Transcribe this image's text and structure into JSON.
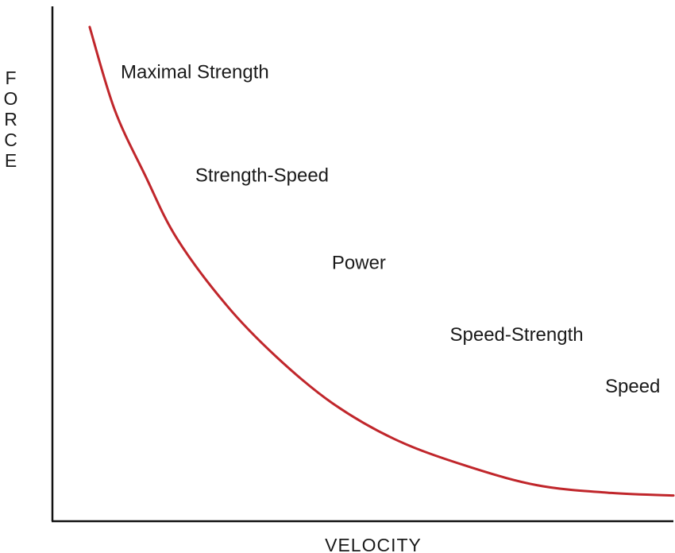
{
  "chart_data": {
    "type": "line",
    "title": "",
    "xlabel": "VELOCITY",
    "ylabel": "FORCE",
    "ticks": "none",
    "curve_color": "#c0262b",
    "series": [
      {
        "x": [
          0.06,
          0.1,
          0.15,
          0.2,
          0.28,
          0.36,
          0.45,
          0.55,
          0.66,
          0.78,
          0.9,
          1.0
        ],
        "y": [
          0.96,
          0.8,
          0.67,
          0.55,
          0.42,
          0.32,
          0.23,
          0.16,
          0.11,
          0.07,
          0.055,
          0.05
        ]
      }
    ],
    "annotations": [
      {
        "text": "Maximal Strength",
        "x": 0.11,
        "y": 0.86
      },
      {
        "text": "Strength-Speed",
        "x": 0.23,
        "y": 0.66
      },
      {
        "text": "Power",
        "x": 0.45,
        "y": 0.49
      },
      {
        "text": "Speed-Strength",
        "x": 0.64,
        "y": 0.35
      },
      {
        "text": "Speed",
        "x": 0.89,
        "y": 0.25
      }
    ]
  }
}
